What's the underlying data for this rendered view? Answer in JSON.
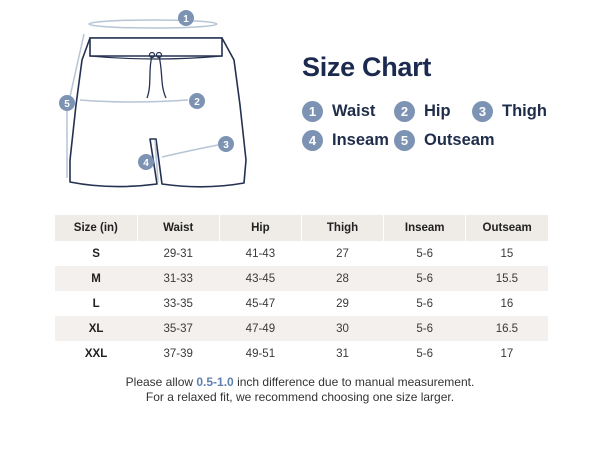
{
  "title": "Size Chart",
  "legend": [
    {
      "num": "1",
      "label": "Waist"
    },
    {
      "num": "2",
      "label": "Hip"
    },
    {
      "num": "3",
      "label": "Thigh"
    },
    {
      "num": "4",
      "label": "Inseam"
    },
    {
      "num": "5",
      "label": "Outseam"
    }
  ],
  "table": {
    "headers": [
      "Size (in)",
      "Waist",
      "Hip",
      "Thigh",
      "Inseam",
      "Outseam"
    ],
    "rows": [
      [
        "S",
        "29-31",
        "41-43",
        "27",
        "5-6",
        "15"
      ],
      [
        "M",
        "31-33",
        "43-45",
        "28",
        "5-6",
        "15.5"
      ],
      [
        "L",
        "33-35",
        "45-47",
        "29",
        "5-6",
        "16"
      ],
      [
        "XL",
        "35-37",
        "47-49",
        "30",
        "5-6",
        "16.5"
      ],
      [
        "XXL",
        "37-39",
        "49-51",
        "31",
        "5-6",
        "17"
      ]
    ]
  },
  "note": {
    "line1_pre": "Please allow ",
    "line1_highlight": "0.5-1.0",
    "line1_post": " inch difference due to manual measurement.",
    "line2": "For a relaxed fit, we recommend choosing one size larger."
  },
  "colors": {
    "accent": "#7d93b3",
    "title": "#1b2a4e",
    "header_bg": "#efebe7",
    "highlight": "#5d7fae"
  }
}
